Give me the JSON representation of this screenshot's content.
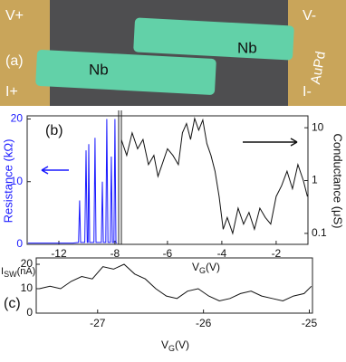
{
  "image_panel": {
    "panel_label": "(a)",
    "labels": {
      "v_plus": "V+",
      "i_plus": "I+",
      "v_minus": "V-",
      "i_minus": "I-",
      "nb_left": "Nb",
      "nb_right": "Nb",
      "aupd": "AuPd"
    }
  },
  "chart_data": [
    {
      "type": "line",
      "panel_label": "(b)",
      "y_label": "Resistance (kΩ)",
      "y2_label": "Conductance (μS)",
      "x_label": {
        "main": "V",
        "sub": "G",
        "unit": "(V)"
      },
      "xlim": [
        -14.26,
        -7.8
      ],
      "xticks": [
        -12,
        -8
      ],
      "x2lim": [
        -7.73,
        -0.83
      ],
      "x2ticks": [
        -6,
        -4,
        -2
      ],
      "ylim": [
        0,
        20.5
      ],
      "yticks": [
        0,
        10,
        20
      ],
      "y2lim": [
        0.062,
        16.8
      ],
      "y2ticks": [
        0.1,
        1,
        10
      ],
      "y2_log": true,
      "series": [
        {
          "color": "#1a1aff",
          "axis": "y",
          "x": [
            -14.2,
            -11.0,
            -10.6,
            -10.52,
            -10.45,
            -10.15,
            -10.06,
            -9.98,
            -9.92,
            -9.87,
            -9.8,
            -9.5,
            -9.42,
            -9.35,
            -8.97,
            -8.9,
            -8.83,
            -8.65,
            -8.58,
            -8.5,
            -8.33,
            -8.26,
            -8.18,
            -8.07,
            -8.0,
            -7.93,
            -7.85
          ],
          "values": [
            0.2,
            0.2,
            0.3,
            7,
            0.3,
            0.3,
            15,
            0.3,
            0.3,
            16,
            0.3,
            0.3,
            17,
            0.3,
            0.3,
            10,
            0.3,
            0.3,
            20,
            0.3,
            0.3,
            14,
            0.3,
            0.3,
            20,
            0.3,
            0.2
          ]
        },
        {
          "color": "#111111",
          "axis": "y2",
          "x": [
            -7.7,
            -7.5,
            -7.3,
            -7.1,
            -6.9,
            -6.7,
            -6.5,
            -6.35,
            -6.2,
            -6.0,
            -5.8,
            -5.6,
            -5.45,
            -5.3,
            -5.15,
            -5.0,
            -4.85,
            -4.7,
            -4.55,
            -4.4,
            -4.25,
            -4.1,
            -3.95,
            -3.8,
            -3.6,
            -3.4,
            -3.2,
            -3.0,
            -2.8,
            -2.6,
            -2.4,
            -2.2,
            -2.0,
            -1.8,
            -1.6,
            -1.4,
            -1.2,
            -1.0,
            -0.85
          ],
          "values": [
            6,
            3,
            8,
            4,
            6,
            2,
            3,
            1.2,
            2,
            4,
            3,
            2,
            8,
            12,
            6,
            15,
            9,
            14,
            5,
            3,
            1.5,
            0.5,
            0.12,
            0.2,
            0.1,
            0.3,
            0.15,
            0.25,
            0.12,
            0.3,
            0.2,
            0.15,
            0.5,
            0.8,
            1.5,
            0.7,
            2,
            1,
            0.5
          ]
        }
      ]
    },
    {
      "type": "line",
      "panel_label": "(c)",
      "y_label": {
        "main": "I",
        "sub": "SW",
        "unit": "(nA)"
      },
      "x_label": {
        "main": "V",
        "sub": "G",
        "unit": "(V)"
      },
      "xlim": [
        -27.58,
        -24.97
      ],
      "xticks": [
        -27,
        -26,
        -25
      ],
      "ylim": [
        0,
        22.6
      ],
      "yticks": [
        0,
        10,
        20
      ],
      "series": [
        {
          "color": "#111111",
          "x": [
            -27.55,
            -27.45,
            -27.35,
            -27.25,
            -27.15,
            -27.05,
            -26.95,
            -26.85,
            -26.75,
            -26.65,
            -26.55,
            -26.45,
            -26.35,
            -26.25,
            -26.15,
            -26.05,
            -25.95,
            -25.85,
            -25.75,
            -25.65,
            -25.55,
            -25.45,
            -25.35,
            -25.25,
            -25.15,
            -25.05,
            -24.98
          ],
          "values": [
            10,
            11,
            10,
            13,
            15,
            14,
            19,
            18,
            20,
            16,
            14,
            10,
            7,
            6,
            9,
            10,
            7,
            5,
            6,
            8,
            9,
            7,
            6,
            5,
            7,
            8,
            11
          ]
        }
      ]
    }
  ]
}
